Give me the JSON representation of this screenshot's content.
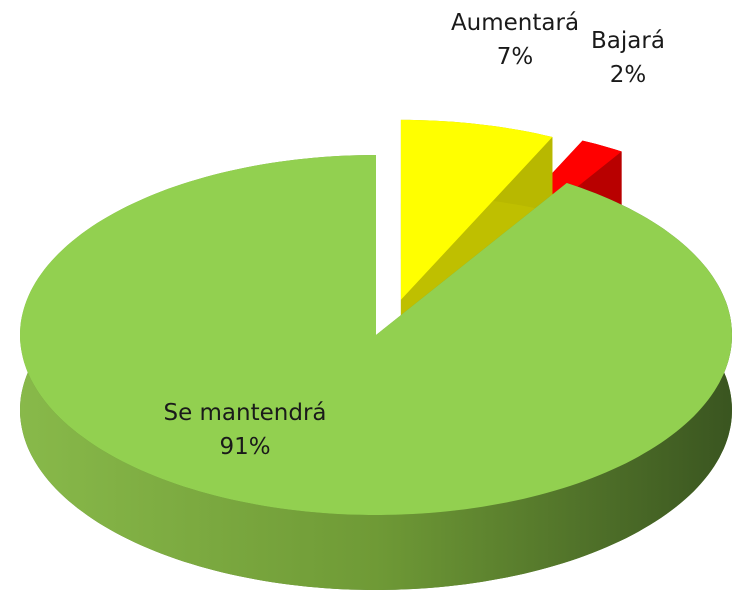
{
  "chart_data": {
    "type": "pie3d",
    "categories": [
      "Aumentará",
      "Bajará",
      "Se mantendrá"
    ],
    "values": [
      7,
      2,
      91
    ],
    "value_labels": [
      "7%",
      "2%",
      "91%"
    ],
    "colors": [
      "#ffff00",
      "#ff0000",
      "#92d050"
    ]
  }
}
